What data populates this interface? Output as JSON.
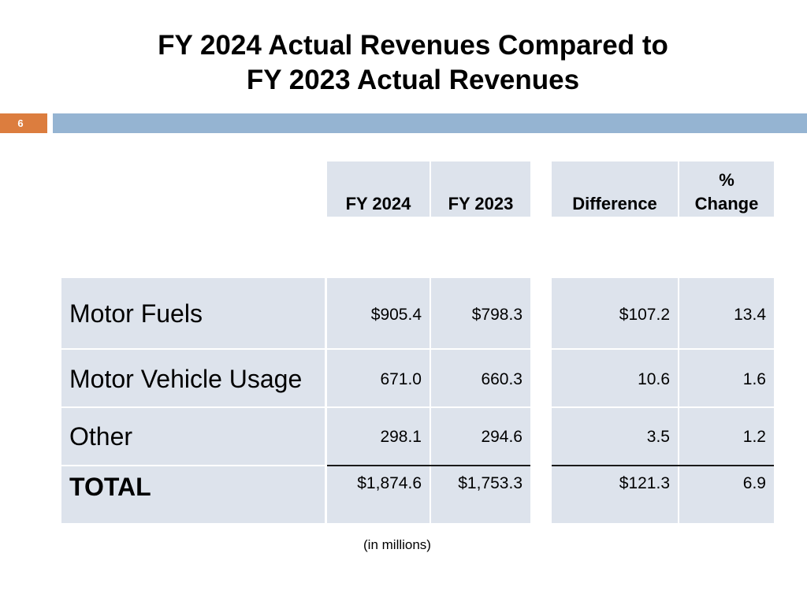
{
  "title": {
    "line1": "FY 2024 Actual Revenues Compared to",
    "line2": "FY 2023 Actual Revenues"
  },
  "page_number": "6",
  "table": {
    "headers": {
      "fy2024": "FY 2024",
      "fy2023": "FY 2023",
      "difference": "Difference",
      "pct_line1": "%",
      "pct_line2": "Change"
    },
    "rows": [
      {
        "label": "Motor Fuels",
        "fy2024": "$905.4",
        "fy2023": "$798.3",
        "difference": "$107.2",
        "pct": "13.4"
      },
      {
        "label": "Motor Vehicle Usage",
        "fy2024": "671.0",
        "fy2023": "660.3",
        "difference": "10.6",
        "pct": "1.6"
      },
      {
        "label": "Other",
        "fy2024": "298.1",
        "fy2023": "294.6",
        "difference": "3.5",
        "pct": "1.2"
      },
      {
        "label": "TOTAL",
        "fy2024": "$1,874.6",
        "fy2023": "$1,753.3",
        "difference": "$121.3",
        "pct": "6.9"
      }
    ]
  },
  "footnote": "(in millions)"
}
